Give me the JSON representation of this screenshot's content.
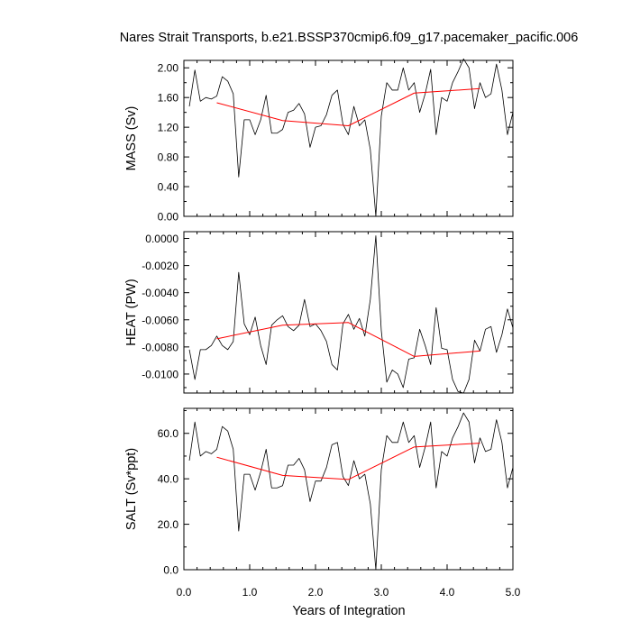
{
  "title": "Nares Strait Transports, b.e21.BSSP370cmip6.f09_g17.pacemaker_pacific.006",
  "chart_data": {
    "type": "line",
    "title": "Nares Strait Transports, b.e21.BSSP370cmip6.f09_g17.pacemaker_pacific.006",
    "xlabel": "Years of Integration",
    "xlim": [
      0,
      5
    ],
    "xticks": [
      0,
      1,
      2,
      3,
      4,
      5
    ],
    "xtick_labels": [
      "0.0",
      "1.0",
      "2.0",
      "3.0",
      "4.0",
      "5.0"
    ],
    "x": [
      0.083,
      0.167,
      0.25,
      0.333,
      0.417,
      0.5,
      0.583,
      0.667,
      0.75,
      0.833,
      0.917,
      1.0,
      1.083,
      1.167,
      1.25,
      1.333,
      1.417,
      1.5,
      1.583,
      1.667,
      1.75,
      1.833,
      1.917,
      2.0,
      2.083,
      2.167,
      2.25,
      2.333,
      2.417,
      2.5,
      2.583,
      2.667,
      2.75,
      2.833,
      2.917,
      3.0,
      3.083,
      3.167,
      3.25,
      3.333,
      3.417,
      3.5,
      3.583,
      3.667,
      3.75,
      3.833,
      3.917,
      4.0,
      4.083,
      4.167,
      4.25,
      4.333,
      4.417,
      4.5,
      4.583,
      4.667,
      4.75,
      4.833,
      4.917,
      5.0
    ],
    "panels": [
      {
        "ylabel": "MASS (Sv)",
        "ylim": [
          0,
          2.1
        ],
        "yticks": [
          0,
          0.4,
          0.8,
          1.2,
          1.6,
          2.0
        ],
        "ytick_labels": [
          "0.00",
          "0.40",
          "0.80",
          "1.20",
          "1.60",
          "2.00"
        ],
        "series": [
          {
            "color": "#000000",
            "values": [
              1.48,
              1.97,
              1.55,
              1.6,
              1.58,
              1.62,
              1.88,
              1.82,
              1.65,
              0.53,
              1.3,
              1.3,
              1.1,
              1.3,
              1.63,
              1.12,
              1.12,
              1.17,
              1.4,
              1.43,
              1.52,
              1.38,
              0.93,
              1.2,
              1.22,
              1.37,
              1.63,
              1.7,
              1.24,
              1.1,
              1.48,
              1.22,
              1.3,
              0.9,
              0.0,
              1.35,
              1.8,
              1.7,
              1.7,
              2.0,
              1.7,
              1.8,
              1.4,
              1.65,
              1.98,
              1.1,
              1.6,
              1.55,
              1.8,
              1.95,
              2.12,
              2.0,
              1.45,
              1.8,
              1.6,
              1.65,
              2.05,
              1.7,
              1.1,
              1.4
            ]
          },
          {
            "color": "#ff0000",
            "x": [
              0.5,
              1.5,
              2.5,
              3.5,
              4.5
            ],
            "values": [
              1.53,
              1.29,
              1.22,
              1.66,
              1.72
            ]
          }
        ]
      },
      {
        "ylabel": "HEAT (PW)",
        "ylim": [
          -0.0114,
          0.0005
        ],
        "yticks": [
          -0.01,
          -0.008,
          -0.006,
          -0.004,
          -0.002,
          0
        ],
        "ytick_labels": [
          "-0.0100",
          "-0.0080",
          "-0.0060",
          "-0.0040",
          "-0.0020",
          "0.0000"
        ],
        "series": [
          {
            "color": "#000000",
            "values": [
              -0.0082,
              -0.0104,
              -0.0082,
              -0.0082,
              -0.0079,
              -0.0072,
              -0.0079,
              -0.0082,
              -0.0076,
              -0.0025,
              -0.0063,
              -0.0071,
              -0.0058,
              -0.0079,
              -0.0093,
              -0.0064,
              -0.006,
              -0.0057,
              -0.0065,
              -0.0068,
              -0.0064,
              -0.0045,
              -0.0065,
              -0.0063,
              -0.0068,
              -0.0076,
              -0.0093,
              -0.0097,
              -0.0063,
              -0.0056,
              -0.0067,
              -0.0059,
              -0.0072,
              -0.0045,
              0.0002,
              -0.0068,
              -0.0106,
              -0.0097,
              -0.01,
              -0.011,
              -0.0089,
              -0.0088,
              -0.0067,
              -0.0079,
              -0.0093,
              -0.0051,
              -0.0081,
              -0.0082,
              -0.0104,
              -0.0113,
              -0.0114,
              -0.0104,
              -0.0075,
              -0.0083,
              -0.0067,
              -0.0065,
              -0.0084,
              -0.0071,
              -0.0052,
              -0.0066
            ]
          },
          {
            "color": "#ff0000",
            "x": [
              0.5,
              1.5,
              2.5,
              3.5,
              4.5
            ],
            "values": [
              -0.0074,
              -0.0064,
              -0.0062,
              -0.0087,
              -0.0083
            ]
          }
        ]
      },
      {
        "ylabel": "SALT (Sv*ppt)",
        "ylim": [
          0,
          71
        ],
        "yticks": [
          0,
          20,
          40,
          60
        ],
        "ytick_labels": [
          "0.0",
          "20.0",
          "40.0",
          "60.0"
        ],
        "series": [
          {
            "color": "#000000",
            "values": [
              48,
              65,
              50,
              52,
              51,
              53,
              63,
              61,
              53,
              17,
              42,
              42,
              35,
              43,
              53,
              36,
              36,
              37,
              46,
              46,
              49,
              44,
              30,
              39,
              39,
              45,
              55,
              56,
              41,
              37,
              48,
              40,
              42,
              29,
              0,
              44,
              59,
              56,
              56,
              65,
              56,
              59,
              45,
              54,
              65,
              36,
              52,
              50,
              58,
              63,
              69,
              65,
              47,
              58,
              52,
              53,
              66,
              56,
              36,
              45
            ]
          },
          {
            "color": "#ff0000",
            "x": [
              0.5,
              1.5,
              2.5,
              3.5,
              4.5
            ],
            "values": [
              49.5,
              41.5,
              39.7,
              54,
              55.7
            ]
          }
        ]
      }
    ]
  }
}
